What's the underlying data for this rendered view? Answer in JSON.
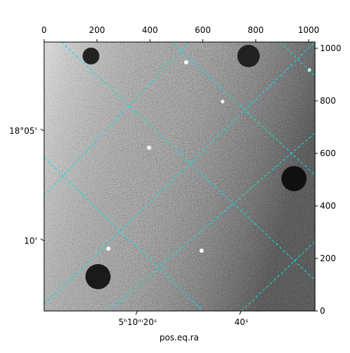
{
  "chart_data": {
    "type": "image",
    "xlabel": "pos.eq.ra",
    "xlim": [
      0,
      1024
    ],
    "ylim": [
      0,
      1024
    ],
    "xticks": [
      0,
      200,
      400,
      600,
      800,
      1000
    ],
    "yticks": [
      0,
      200,
      400,
      600,
      800,
      1000
    ],
    "ra_ticks": [
      {
        "value": 354,
        "label": "5ʰ10ᵐ20ˢ"
      },
      {
        "value": 746,
        "label": "40ˢ"
      }
    ],
    "dec_ticks": [
      {
        "value": 685,
        "label": "18°05'"
      },
      {
        "value": 267,
        "label": "10'"
      }
    ],
    "grid_color": "#00e5e5"
  }
}
